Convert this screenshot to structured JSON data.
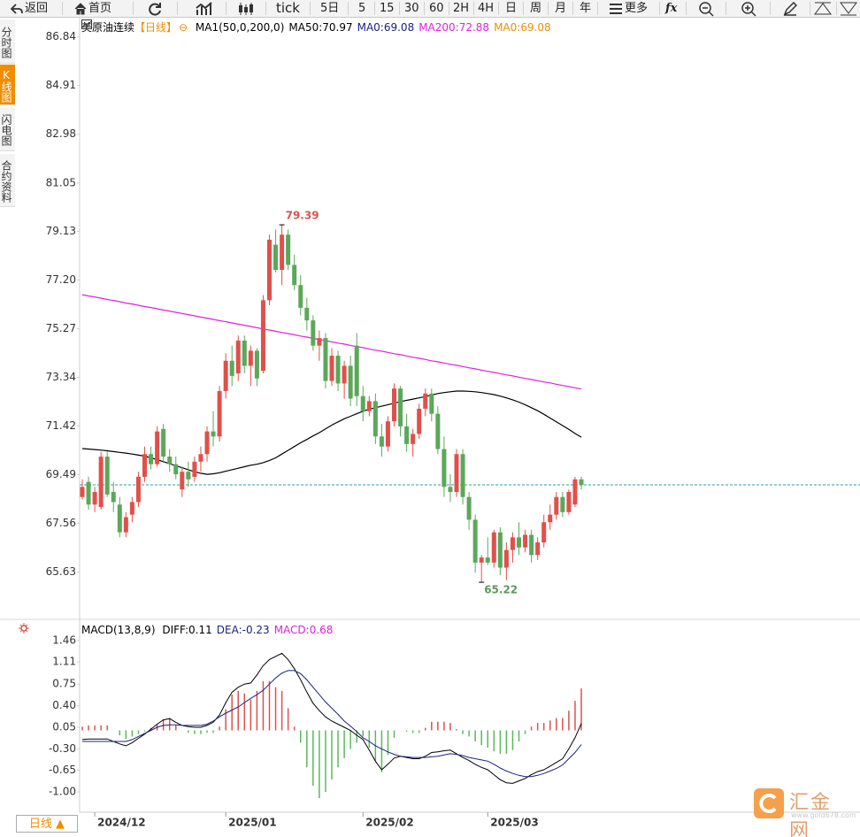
{
  "toolbar": {
    "items": [
      "返回",
      "首页",
      "tick",
      "5日",
      "5",
      "15",
      "30",
      "60",
      "2H",
      "4H",
      "日",
      "周",
      "月",
      "年",
      "更多",
      "fx"
    ]
  },
  "sidebar": {
    "tabs": [
      "分时图",
      "K线图",
      "闪电图",
      "合约资料"
    ]
  },
  "period_tab": "日线 ▲",
  "logo": {
    "name": "汇金网",
    "url": "www.gold678.com"
  },
  "chart_data": [
    {
      "type": "candlestick",
      "title": "美原油连续",
      "period": "【日线】",
      "legend": [
        {
          "text": "MA1(50,0,200,0)",
          "color": "#000000"
        },
        {
          "text": "MA50:70.97",
          "color": "#000000"
        },
        {
          "text": "MA0:69.08",
          "color": "#1a237e"
        },
        {
          "text": "MA200:72.88",
          "color": "#e020e0"
        },
        {
          "text": "MA0:69.08",
          "color": "#f08c00"
        }
      ],
      "categories": [
        null,
        null,
        "2024/12",
        null,
        null,
        null,
        null,
        null,
        null,
        null,
        null,
        null,
        null,
        null,
        null,
        null,
        null,
        null,
        null,
        null,
        null,
        null,
        null,
        "2025/01",
        null,
        null,
        null,
        null,
        null,
        null,
        null,
        null,
        null,
        null,
        null,
        null,
        null,
        null,
        null,
        null,
        null,
        null,
        null,
        null,
        null,
        "2025/02",
        null,
        null,
        null,
        null,
        null,
        null,
        null,
        null,
        null,
        null,
        null,
        null,
        null,
        null,
        null,
        null,
        null,
        null,
        null,
        "2025/03",
        null,
        null,
        null,
        null,
        null,
        null,
        null,
        null,
        null,
        null,
        null,
        null,
        null,
        null,
        null
      ],
      "open": [
        68.6,
        69.2,
        68.3,
        68.2,
        70.2,
        68.8,
        68.3,
        67.2,
        67.9,
        68.4,
        69.4,
        70.3,
        69.9,
        71.3,
        70.2,
        69.9,
        68.9,
        69.6,
        69.4,
        70.0,
        70.3,
        71.2,
        71.0,
        72.8,
        74.0,
        73.5,
        74.8,
        73.8,
        74.4,
        73.6,
        76.4,
        78.6,
        77.6,
        79.0,
        77.8,
        77.0,
        76.1,
        75.6,
        74.6,
        74.9,
        73.2,
        74.2,
        73.1,
        73.8,
        74.6,
        72.6,
        72.0,
        72.4,
        71.0,
        70.6,
        71.6,
        72.9,
        71.4,
        70.7,
        71.1,
        72.1,
        72.7,
        71.9,
        70.5,
        69.0,
        68.8,
        70.3,
        68.6,
        67.7,
        66.0,
        66.2,
        66.0,
        67.2,
        65.8,
        66.5,
        67.0,
        66.6,
        67.1,
        66.3,
        66.8,
        67.6,
        67.9,
        68.6,
        68.0,
        68.3,
        69.3
      ],
      "high": [
        69.3,
        69.4,
        69.0,
        70.4,
        70.4,
        69.2,
        68.6,
        68.0,
        68.6,
        69.6,
        70.6,
        70.6,
        71.4,
        71.5,
        70.5,
        70.2,
        69.8,
        70.0,
        70.2,
        70.6,
        71.4,
        72.0,
        73.0,
        74.3,
        74.6,
        75.0,
        75.0,
        74.6,
        74.5,
        76.6,
        79.0,
        79.2,
        79.39,
        79.2,
        78.2,
        77.4,
        76.5,
        75.8,
        75.2,
        75.1,
        74.5,
        74.4,
        74.0,
        74.2,
        75.1,
        73.0,
        72.6,
        72.7,
        71.5,
        71.8,
        73.1,
        73.0,
        71.9,
        71.3,
        72.3,
        72.9,
        72.9,
        72.2,
        71.0,
        69.5,
        70.5,
        70.5,
        68.8,
        67.9,
        66.3,
        67.0,
        67.3,
        67.4,
        66.8,
        67.2,
        67.6,
        67.3,
        67.3,
        67.0,
        67.9,
        68.3,
        68.8,
        68.8,
        68.9,
        69.4,
        69.4
      ],
      "low": [
        68.5,
        68.1,
        68.0,
        68.1,
        68.6,
        68.0,
        67.0,
        67.0,
        67.6,
        68.2,
        69.2,
        69.7,
        69.8,
        70.0,
        69.6,
        69.3,
        68.6,
        69.0,
        69.2,
        69.6,
        70.0,
        70.6,
        70.8,
        72.5,
        73.0,
        73.2,
        73.5,
        73.0,
        73.0,
        73.5,
        76.2,
        77.5,
        77.0,
        77.6,
        76.8,
        75.8,
        75.2,
        74.4,
        74.0,
        72.9,
        73.0,
        72.8,
        72.5,
        72.2,
        72.2,
        71.6,
        71.8,
        70.7,
        70.2,
        70.4,
        71.4,
        71.0,
        70.4,
        70.2,
        70.9,
        71.8,
        71.6,
        70.3,
        68.6,
        68.4,
        68.6,
        68.3,
        67.3,
        65.6,
        65.22,
        65.9,
        65.8,
        65.5,
        65.3,
        66.0,
        66.3,
        66.4,
        66.0,
        66.1,
        66.6,
        67.3,
        67.7,
        67.8,
        67.9,
        68.2,
        68.9
      ],
      "close": [
        69.0,
        68.3,
        68.8,
        70.2,
        68.7,
        68.4,
        67.2,
        67.8,
        68.4,
        69.4,
        70.3,
        69.9,
        71.2,
        70.2,
        69.9,
        69.5,
        69.6,
        69.3,
        70.0,
        70.3,
        71.2,
        71.0,
        72.8,
        74.0,
        73.4,
        74.8,
        73.8,
        74.4,
        73.3,
        76.4,
        78.8,
        77.6,
        79.0,
        77.8,
        77.0,
        76.1,
        75.6,
        74.6,
        74.9,
        73.2,
        74.2,
        73.1,
        73.8,
        72.5,
        72.6,
        72.0,
        72.4,
        71.0,
        70.6,
        71.6,
        72.9,
        71.4,
        70.7,
        71.1,
        72.1,
        72.7,
        71.9,
        70.5,
        69.0,
        68.8,
        70.3,
        68.6,
        67.7,
        66.0,
        66.2,
        66.0,
        67.2,
        65.8,
        66.5,
        67.0,
        66.6,
        67.1,
        66.3,
        66.8,
        67.6,
        67.9,
        68.6,
        68.0,
        68.8,
        69.3,
        69.08
      ],
      "up_color": "#e0504a",
      "down_color": "#5aa85a",
      "last_line_color": "#2a9d9d",
      "lines": [
        {
          "name": "MA50",
          "color": "#000000",
          "values": [
            70.52,
            70.5,
            70.48,
            70.46,
            70.43,
            70.4,
            70.37,
            70.34,
            70.3,
            70.26,
            70.22,
            70.15,
            70.08,
            70.0,
            69.92,
            69.84,
            69.76,
            69.68,
            69.6,
            69.54,
            69.5,
            69.52,
            69.56,
            69.62,
            69.68,
            69.74,
            69.8,
            69.86,
            69.9,
            69.96,
            70.05,
            70.15,
            70.3,
            70.45,
            70.6,
            70.75,
            70.88,
            71.02,
            71.15,
            71.3,
            71.45,
            71.58,
            71.7,
            71.8,
            71.9,
            72.0,
            72.08,
            72.14,
            72.2,
            72.26,
            72.32,
            72.38,
            72.43,
            72.48,
            72.53,
            72.58,
            72.64,
            72.7,
            72.74,
            72.77,
            72.8,
            72.8,
            72.79,
            72.77,
            72.74,
            72.7,
            72.66,
            72.6,
            72.53,
            72.45,
            72.36,
            72.26,
            72.14,
            72.02,
            71.88,
            71.73,
            71.58,
            71.43,
            71.28,
            71.12,
            70.97
          ]
        },
        {
          "name": "MA200",
          "color": "#e020e0",
          "values": [
            76.62,
            76.57,
            76.53,
            76.48,
            76.43,
            76.39,
            76.34,
            76.29,
            76.25,
            76.2,
            76.15,
            76.11,
            76.06,
            76.01,
            75.97,
            75.92,
            75.87,
            75.83,
            75.78,
            75.73,
            75.69,
            75.64,
            75.59,
            75.55,
            75.5,
            75.45,
            75.41,
            75.36,
            75.31,
            75.26,
            75.22,
            75.17,
            75.12,
            75.08,
            75.03,
            74.98,
            74.94,
            74.89,
            74.84,
            74.8,
            74.75,
            74.7,
            74.66,
            74.61,
            74.56,
            74.52,
            74.47,
            74.42,
            74.38,
            74.33,
            74.28,
            74.24,
            74.19,
            74.14,
            74.1,
            74.05,
            74.0,
            73.96,
            73.91,
            73.86,
            73.82,
            73.77,
            73.72,
            73.68,
            73.63,
            73.58,
            73.54,
            73.49,
            73.44,
            73.4,
            73.35,
            73.3,
            73.26,
            73.21,
            73.16,
            73.12,
            73.07,
            73.02,
            72.98,
            72.93,
            72.88
          ]
        }
      ],
      "ylim": [
        63.75,
        87.6
      ],
      "yticks": [
        86.84,
        84.91,
        82.98,
        81.05,
        79.13,
        {
          "value": 77.2,
          "label": "77.20"
        },
        75.27,
        73.34,
        71.42,
        69.49,
        67.56,
        65.63
      ]
    },
    {
      "type": "macd",
      "title": "MACD(13,8,9)",
      "legend": [
        {
          "text": "DIFF:0.11",
          "color": "#000000"
        },
        {
          "text": "DEA:-0.23",
          "color": "#1a237e"
        },
        {
          "text": "MACD:0.68",
          "color": "#e020e0"
        }
      ],
      "histogram": [
        0.06,
        0.08,
        0.08,
        0.08,
        0.08,
        0,
        -0.08,
        -0.14,
        -0.1,
        -0.06,
        -0.02,
        0.04,
        0.1,
        0.18,
        0.2,
        0.08,
        0,
        -0.04,
        -0.06,
        -0.06,
        -0.04,
        -0.04,
        0.06,
        0.34,
        0.58,
        0.64,
        0.6,
        0.5,
        0.64,
        0.8,
        0.8,
        0.7,
        0.64,
        0.36,
        0.06,
        -0.2,
        -0.6,
        -0.9,
        -1.1,
        -1.0,
        -0.8,
        -0.6,
        -0.45,
        -0.3,
        -0.2,
        -0.1,
        -0.28,
        -0.5,
        -0.68,
        -0.4,
        -0.12,
        0,
        -0.02,
        -0.04,
        -0.04,
        0.04,
        0.14,
        0.14,
        0.14,
        0.12,
        0.02,
        -0.06,
        -0.1,
        -0.18,
        -0.24,
        -0.28,
        -0.34,
        -0.38,
        -0.38,
        -0.32,
        -0.18,
        -0.06,
        0.06,
        0.12,
        0.12,
        0.16,
        0.2,
        0.2,
        0.32,
        0.48,
        0.68
      ],
      "up_color": "#d9534f",
      "down_color": "#5cb85c",
      "series": [
        {
          "name": "DIFF",
          "color": "#000000",
          "values": [
            -0.15,
            -0.14,
            -0.14,
            -0.14,
            -0.14,
            -0.18,
            -0.22,
            -0.25,
            -0.2,
            -0.13,
            -0.06,
            0.02,
            0.1,
            0.17,
            0.19,
            0.13,
            0.08,
            0.06,
            0.05,
            0.05,
            0.08,
            0.13,
            0.25,
            0.45,
            0.62,
            0.7,
            0.75,
            0.77,
            0.9,
            1.05,
            1.15,
            1.2,
            1.25,
            1.15,
            1.0,
            0.82,
            0.62,
            0.44,
            0.32,
            0.22,
            0.15,
            0.1,
            0.05,
            0,
            -0.08,
            -0.15,
            -0.32,
            -0.5,
            -0.64,
            -0.55,
            -0.45,
            -0.42,
            -0.44,
            -0.46,
            -0.46,
            -0.42,
            -0.36,
            -0.35,
            -0.33,
            -0.32,
            -0.38,
            -0.44,
            -0.49,
            -0.55,
            -0.6,
            -0.64,
            -0.72,
            -0.8,
            -0.85,
            -0.86,
            -0.82,
            -0.78,
            -0.72,
            -0.67,
            -0.64,
            -0.58,
            -0.52,
            -0.46,
            -0.3,
            -0.12,
            0.11
          ]
        },
        {
          "name": "DEA",
          "color": "#1a237e",
          "values": [
            -0.18,
            -0.18,
            -0.18,
            -0.18,
            -0.18,
            -0.18,
            -0.18,
            -0.18,
            -0.15,
            -0.1,
            -0.05,
            0,
            0.05,
            0.08,
            0.09,
            0.09,
            0.08,
            0.08,
            0.08,
            0.08,
            0.1,
            0.15,
            0.22,
            0.28,
            0.33,
            0.38,
            0.45,
            0.52,
            0.58,
            0.65,
            0.75,
            0.85,
            0.93,
            0.97,
            0.97,
            0.92,
            0.82,
            0.7,
            0.58,
            0.46,
            0.36,
            0.26,
            0.15,
            0.07,
            -0.02,
            -0.12,
            -0.18,
            -0.25,
            -0.3,
            -0.35,
            -0.39,
            -0.42,
            -0.43,
            -0.44,
            -0.44,
            -0.44,
            -0.43,
            -0.42,
            -0.4,
            -0.38,
            -0.39,
            -0.41,
            -0.44,
            -0.46,
            -0.48,
            -0.5,
            -0.55,
            -0.61,
            -0.66,
            -0.7,
            -0.73,
            -0.75,
            -0.75,
            -0.73,
            -0.7,
            -0.66,
            -0.62,
            -0.56,
            -0.46,
            -0.36,
            -0.23
          ]
        }
      ],
      "ylim": [
        -1.3,
        1.73
      ],
      "yticks": [
        1.46,
        1.11,
        0.75,
        {
          "value": 0.4,
          "label": "0.40"
        },
        0.05,
        {
          "value": -0.3,
          "label": "-0.30"
        },
        -0.65,
        {
          "value": -1.0,
          "label": "-1.00"
        }
      ]
    }
  ]
}
